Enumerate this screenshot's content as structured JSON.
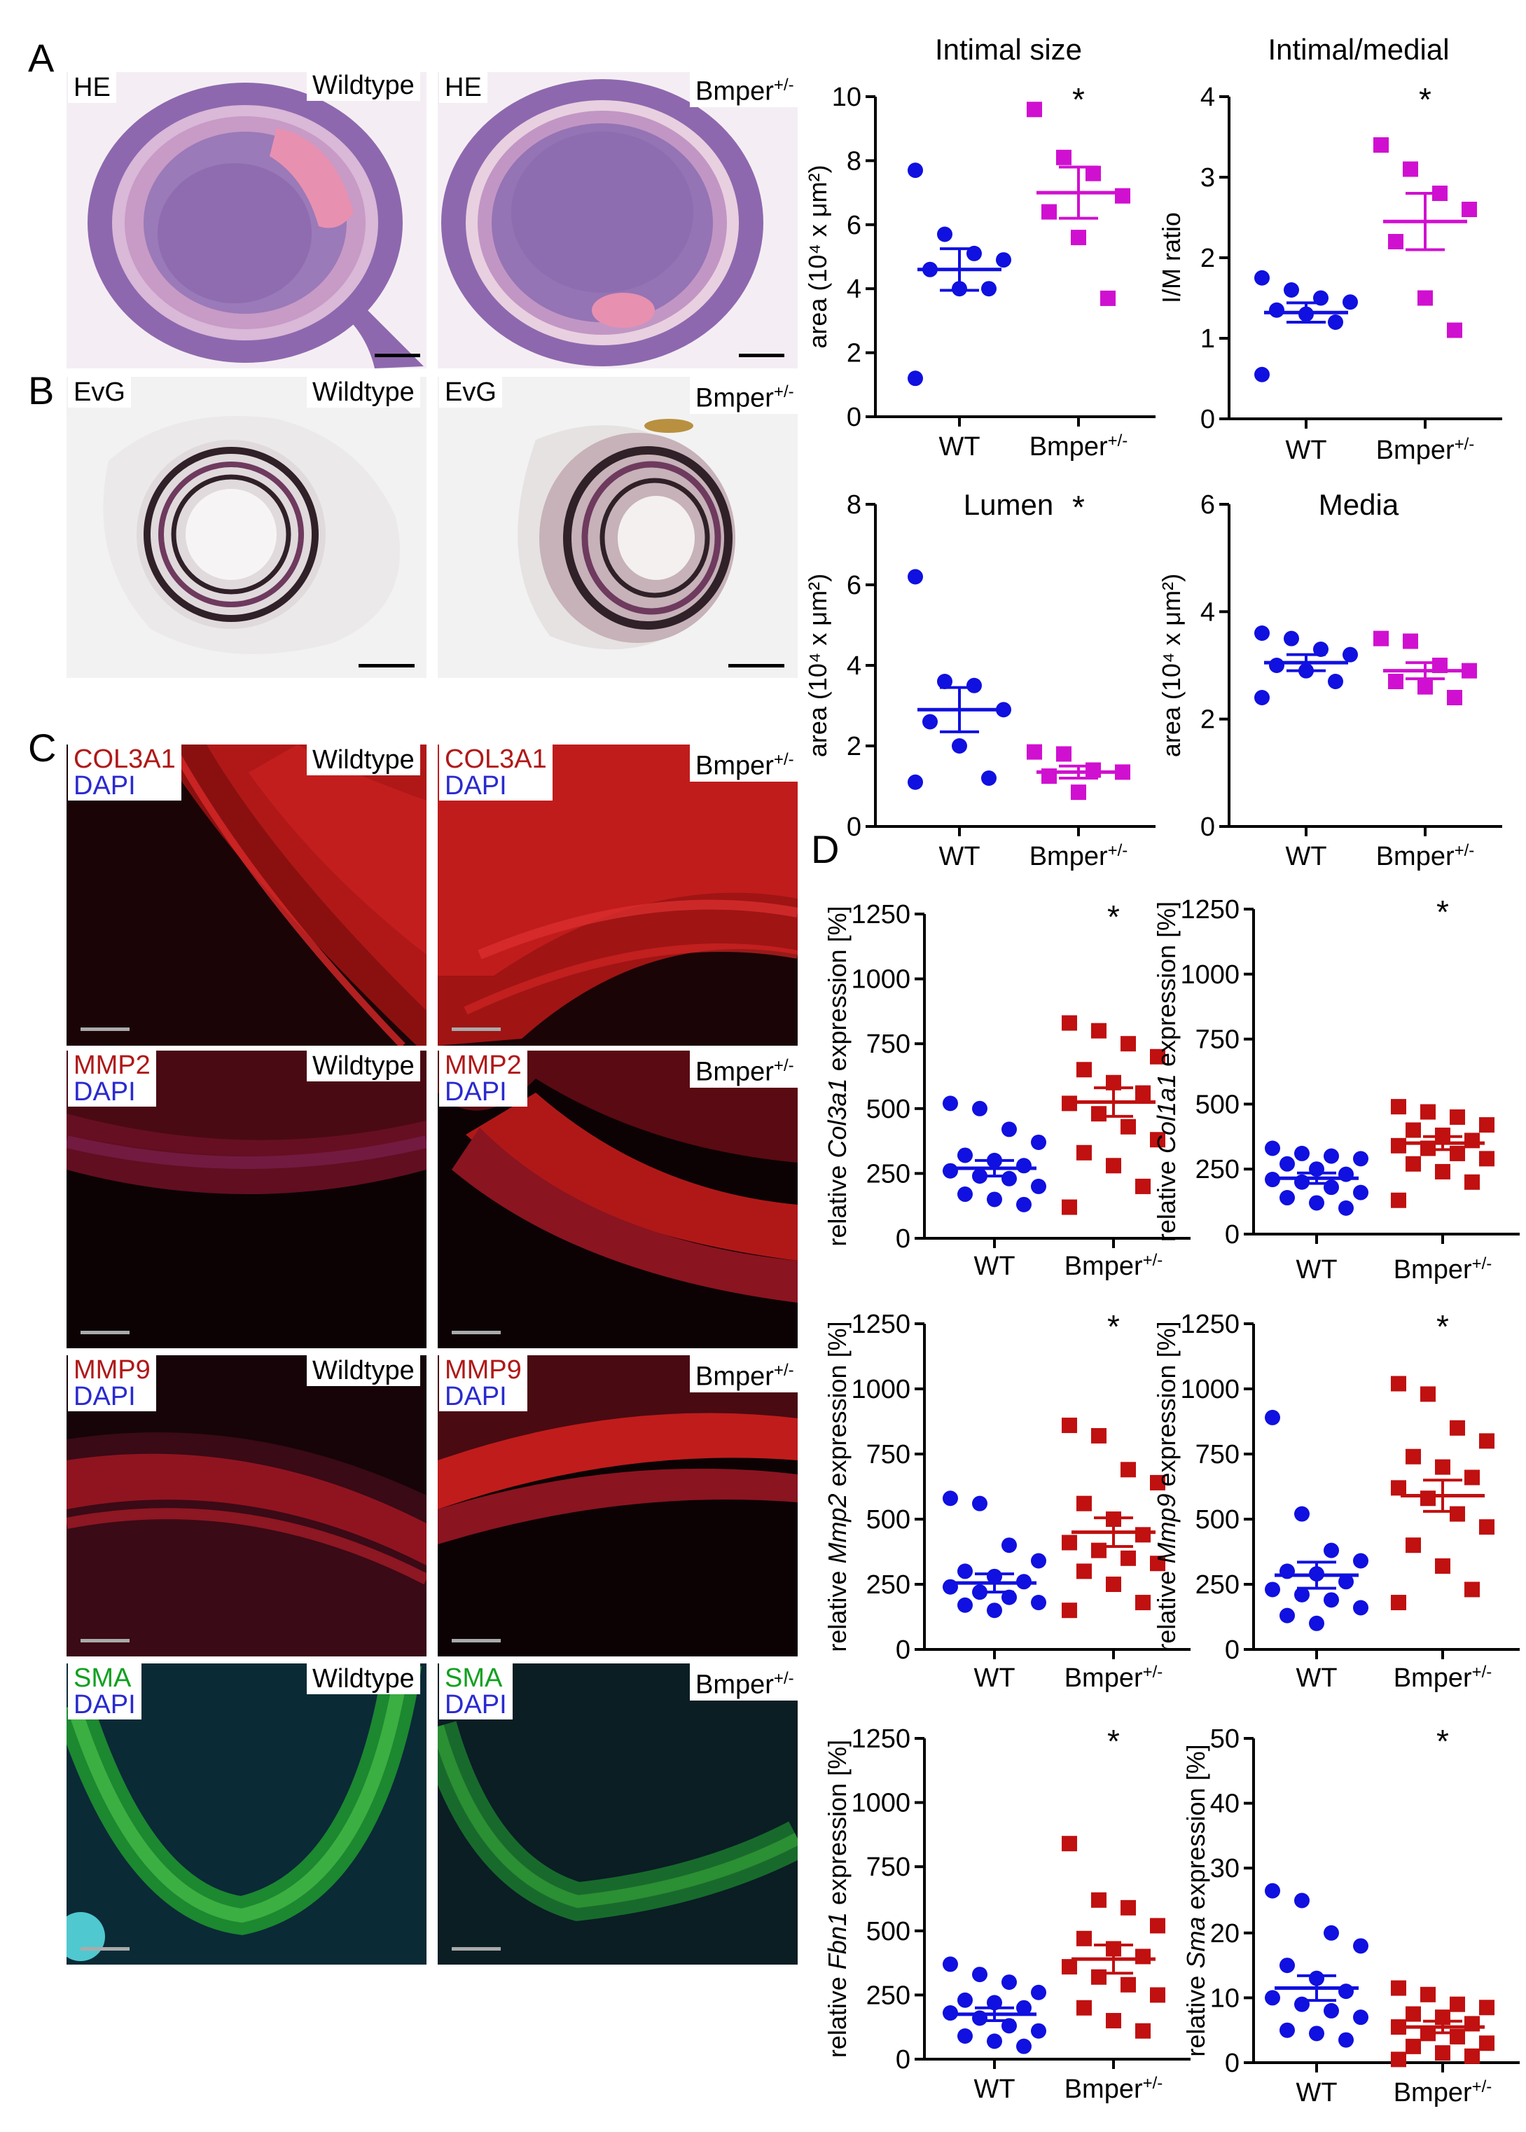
{
  "panel_letters": {
    "a": "A",
    "b": "B",
    "c": "C",
    "d": "D"
  },
  "micrographs": {
    "he": {
      "stain": "HE",
      "left_label": "Wildtype",
      "right_label": "Bmper",
      "right_sup": "+/-"
    },
    "evg": {
      "stain": "EvG",
      "left_label": "Wildtype",
      "right_label": "Bmper",
      "right_sup": "+/-"
    },
    "if_rows": [
      {
        "marker": "COL3A1",
        "counter": "DAPI",
        "left_label": "Wildtype",
        "right_label": "Bmper",
        "right_sup": "+/-"
      },
      {
        "marker": "MMP2",
        "counter": "DAPI",
        "left_label": "Wildtype",
        "right_label": "Bmper",
        "right_sup": "+/-"
      },
      {
        "marker": "MMP9",
        "counter": "DAPI",
        "left_label": "Wildtype",
        "right_label": "Bmper",
        "right_sup": "+/-"
      },
      {
        "marker": "SMA",
        "counter": "DAPI",
        "left_label": "Wildtype",
        "right_label": "Bmper",
        "right_sup": "+/-"
      }
    ]
  },
  "colors": {
    "wt": "#1010e0",
    "bmper_ab": "#d010d0",
    "bmper_d": "#c01010"
  },
  "chart_data": [
    {
      "type": "scatter",
      "title": "Intimal size",
      "ylabel": "area (10⁴ x μm²)",
      "ylim": [
        0,
        10
      ],
      "yticks": [
        "0",
        "2",
        "4",
        "6",
        "8",
        "10"
      ],
      "categories": [
        "WT",
        "Bmper"
      ],
      "cat_sup": [
        "",
        "+/-"
      ],
      "significance": "*",
      "series": [
        {
          "values": [
            7.7,
            5.7,
            5.1,
            4.9,
            4.6,
            4.0,
            4.0,
            1.2
          ],
          "mean": 4.6,
          "sem": 0.65
        },
        {
          "values": [
            9.6,
            8.1,
            7.6,
            6.9,
            6.4,
            5.6,
            3.7
          ],
          "mean": 7.0,
          "sem": 0.8
        }
      ]
    },
    {
      "type": "scatter",
      "title": "Intimal/medial",
      "ylabel": "I/M ratio",
      "ylim": [
        0,
        4
      ],
      "yticks": [
        "0",
        "1",
        "2",
        "3",
        "4"
      ],
      "categories": [
        "WT",
        "Bmper"
      ],
      "cat_sup": [
        "",
        "+/-"
      ],
      "significance": "*",
      "series": [
        {
          "values": [
            1.75,
            1.6,
            1.5,
            1.45,
            1.35,
            1.3,
            1.2,
            0.55
          ],
          "mean": 1.32,
          "sem": 0.12
        },
        {
          "values": [
            3.4,
            3.1,
            2.8,
            2.6,
            2.2,
            1.5,
            1.1
          ],
          "mean": 2.45,
          "sem": 0.35
        }
      ]
    },
    {
      "type": "scatter",
      "title": "Lumen",
      "ylabel": "area (10⁴ x μm²)",
      "ylim": [
        0,
        8
      ],
      "yticks": [
        "0",
        "2",
        "4",
        "6",
        "8"
      ],
      "categories": [
        "WT",
        "Bmper"
      ],
      "cat_sup": [
        "",
        "+/-"
      ],
      "significance": "*",
      "series": [
        {
          "values": [
            6.2,
            3.6,
            3.5,
            2.9,
            2.6,
            2.0,
            1.2,
            1.1
          ],
          "mean": 2.9,
          "sem": 0.55
        },
        {
          "values": [
            1.85,
            1.8,
            1.4,
            1.35,
            1.25,
            0.85
          ],
          "mean": 1.35,
          "sem": 0.15
        }
      ]
    },
    {
      "type": "scatter",
      "title": "Media",
      "ylabel": "area (10⁴ x μm²)",
      "ylim": [
        0,
        6
      ],
      "yticks": [
        "0",
        "2",
        "4",
        "6"
      ],
      "categories": [
        "WT",
        "Bmper"
      ],
      "cat_sup": [
        "",
        "+/-"
      ],
      "significance": "",
      "series": [
        {
          "values": [
            3.6,
            3.5,
            3.3,
            3.2,
            3.0,
            2.9,
            2.7,
            2.4
          ],
          "mean": 3.05,
          "sem": 0.15
        },
        {
          "values": [
            3.5,
            3.45,
            3.0,
            2.9,
            2.7,
            2.6,
            2.4
          ],
          "mean": 2.9,
          "sem": 0.15
        }
      ]
    },
    {
      "type": "scatter",
      "ylabel_prefix": "relative ",
      "ylabel_gene": "Col3a1",
      "ylabel_suffix": " expression [%]",
      "ylim": [
        0,
        1250
      ],
      "yticks": [
        "0",
        "250",
        "500",
        "750",
        "1000",
        "1250"
      ],
      "categories": [
        "WT",
        "Bmper"
      ],
      "cat_sup": [
        "",
        "+/-"
      ],
      "significance": "*",
      "series": [
        {
          "values": [
            520,
            500,
            420,
            370,
            320,
            300,
            280,
            260,
            240,
            230,
            200,
            170,
            150,
            130
          ],
          "mean": 270,
          "sem": 30
        },
        {
          "values": [
            830,
            800,
            750,
            700,
            650,
            600,
            560,
            520,
            480,
            430,
            380,
            330,
            280,
            200,
            120
          ],
          "mean": 525,
          "sem": 55
        }
      ]
    },
    {
      "type": "scatter",
      "ylabel_prefix": "relative ",
      "ylabel_gene": "Col1a1",
      "ylabel_suffix": " expression [%]",
      "ylim": [
        0,
        1250
      ],
      "yticks": [
        "0",
        "250",
        "500",
        "750",
        "1000",
        "1250"
      ],
      "categories": [
        "WT",
        "Bmper"
      ],
      "cat_sup": [
        "",
        "+/-"
      ],
      "significance": "*",
      "series": [
        {
          "values": [
            330,
            310,
            300,
            290,
            270,
            250,
            230,
            210,
            200,
            180,
            160,
            140,
            120,
            100
          ],
          "mean": 215,
          "sem": 20
        },
        {
          "values": [
            490,
            470,
            450,
            420,
            400,
            380,
            360,
            340,
            330,
            310,
            290,
            270,
            240,
            200,
            130
          ],
          "mean": 350,
          "sem": 25
        }
      ]
    },
    {
      "type": "scatter",
      "ylabel_prefix": "relative ",
      "ylabel_gene": "Mmp2",
      "ylabel_suffix": " expression [%]",
      "ylim": [
        0,
        1250
      ],
      "yticks": [
        "0",
        "250",
        "500",
        "750",
        "1000",
        "1250"
      ],
      "categories": [
        "WT",
        "Bmper"
      ],
      "cat_sup": [
        "",
        "+/-"
      ],
      "significance": "*",
      "series": [
        {
          "values": [
            580,
            560,
            400,
            340,
            300,
            280,
            260,
            240,
            220,
            200,
            180,
            170,
            150
          ],
          "mean": 255,
          "sem": 35
        },
        {
          "values": [
            860,
            820,
            690,
            640,
            560,
            500,
            440,
            410,
            380,
            350,
            330,
            300,
            250,
            180,
            150
          ],
          "mean": 450,
          "sem": 55
        }
      ]
    },
    {
      "type": "scatter",
      "ylabel_prefix": "relative ",
      "ylabel_gene": "Mmp9",
      "ylabel_suffix": " expression [%]",
      "ylim": [
        0,
        1250
      ],
      "yticks": [
        "0",
        "250",
        "500",
        "750",
        "1000",
        "1250"
      ],
      "categories": [
        "WT",
        "Bmper"
      ],
      "cat_sup": [
        "",
        "+/-"
      ],
      "significance": "*",
      "series": [
        {
          "values": [
            890,
            520,
            380,
            340,
            300,
            290,
            260,
            230,
            210,
            190,
            160,
            130,
            100
          ],
          "mean": 285,
          "sem": 50
        },
        {
          "values": [
            1020,
            980,
            850,
            800,
            740,
            700,
            660,
            620,
            580,
            520,
            470,
            400,
            320,
            230,
            180
          ],
          "mean": 590,
          "sem": 60
        }
      ]
    },
    {
      "type": "scatter",
      "ylabel_prefix": "relative ",
      "ylabel_gene": "Fbn1",
      "ylabel_suffix": " expression [%]",
      "ylim": [
        0,
        1250
      ],
      "yticks": [
        "0",
        "250",
        "500",
        "750",
        "1000",
        "1250"
      ],
      "categories": [
        "WT",
        "Bmper"
      ],
      "cat_sup": [
        "",
        "+/-"
      ],
      "significance": "*",
      "series": [
        {
          "values": [
            370,
            330,
            300,
            260,
            230,
            220,
            200,
            180,
            160,
            130,
            110,
            90,
            70,
            50
          ],
          "mean": 175,
          "sem": 25
        },
        {
          "values": [
            840,
            620,
            590,
            520,
            470,
            430,
            400,
            360,
            320,
            290,
            250,
            200,
            150,
            110
          ],
          "mean": 390,
          "sem": 55
        }
      ]
    },
    {
      "type": "scatter",
      "ylabel_prefix": "relative ",
      "ylabel_gene": "Sma",
      "ylabel_suffix": " expression [%]",
      "ylim": [
        0,
        50
      ],
      "yticks": [
        "0",
        "10",
        "20",
        "30",
        "40",
        "50"
      ],
      "categories": [
        "WT",
        "Bmper"
      ],
      "cat_sup": [
        "",
        "+/-"
      ],
      "significance": "*",
      "series": [
        {
          "values": [
            26.5,
            25,
            20,
            18,
            15,
            13,
            11,
            10,
            9,
            8,
            7,
            5,
            4.5,
            3.5
          ],
          "mean": 11.5,
          "sem": 1.9
        },
        {
          "values": [
            11.5,
            10.5,
            9,
            8.5,
            7.5,
            7,
            6,
            5.5,
            4.5,
            4,
            3,
            2.5,
            1.5,
            1,
            0.5
          ],
          "mean": 5.5,
          "sem": 0.9
        }
      ]
    }
  ]
}
